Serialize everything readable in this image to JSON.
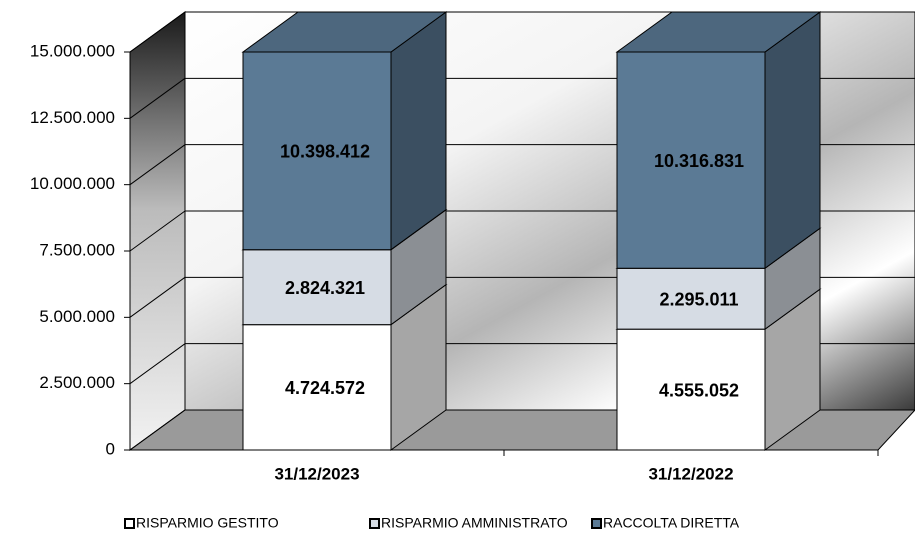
{
  "chart_data": {
    "type": "bar3d_stacked",
    "categories": [
      "31/12/2023",
      "31/12/2022"
    ],
    "series": [
      {
        "name": "RISPARMIO GESTITO",
        "color": "#ffffff",
        "values": [
          4724572,
          4555052
        ],
        "value_labels": [
          "4.724.572",
          "4.555.052"
        ]
      },
      {
        "name": "RISPARMIO AMMINISTRATO",
        "color": "#d6dce4",
        "values": [
          2824321,
          2295011
        ],
        "value_labels": [
          "2.824.321",
          "2.295.011"
        ]
      },
      {
        "name": "RACCOLTA DIRETTA",
        "color": "#5b7a95",
        "values": [
          10398412,
          10316831
        ],
        "value_labels": [
          "10.398.412",
          "10.316.831"
        ]
      }
    ],
    "ylim": [
      0,
      15000000
    ],
    "yticks": [
      0,
      {
        "value": 2500000,
        "label": "2.500.000"
      },
      {
        "value": 5000000,
        "label": "5.000.000"
      },
      {
        "value": 7500000,
        "label": "7.500.000"
      },
      {
        "value": 10000000,
        "label": "10.000.000"
      },
      {
        "value": 12500000,
        "label": "12.500.000"
      },
      {
        "value": 15000000,
        "label": "15.000.000"
      }
    ],
    "grid": true,
    "legend": "bottom"
  }
}
